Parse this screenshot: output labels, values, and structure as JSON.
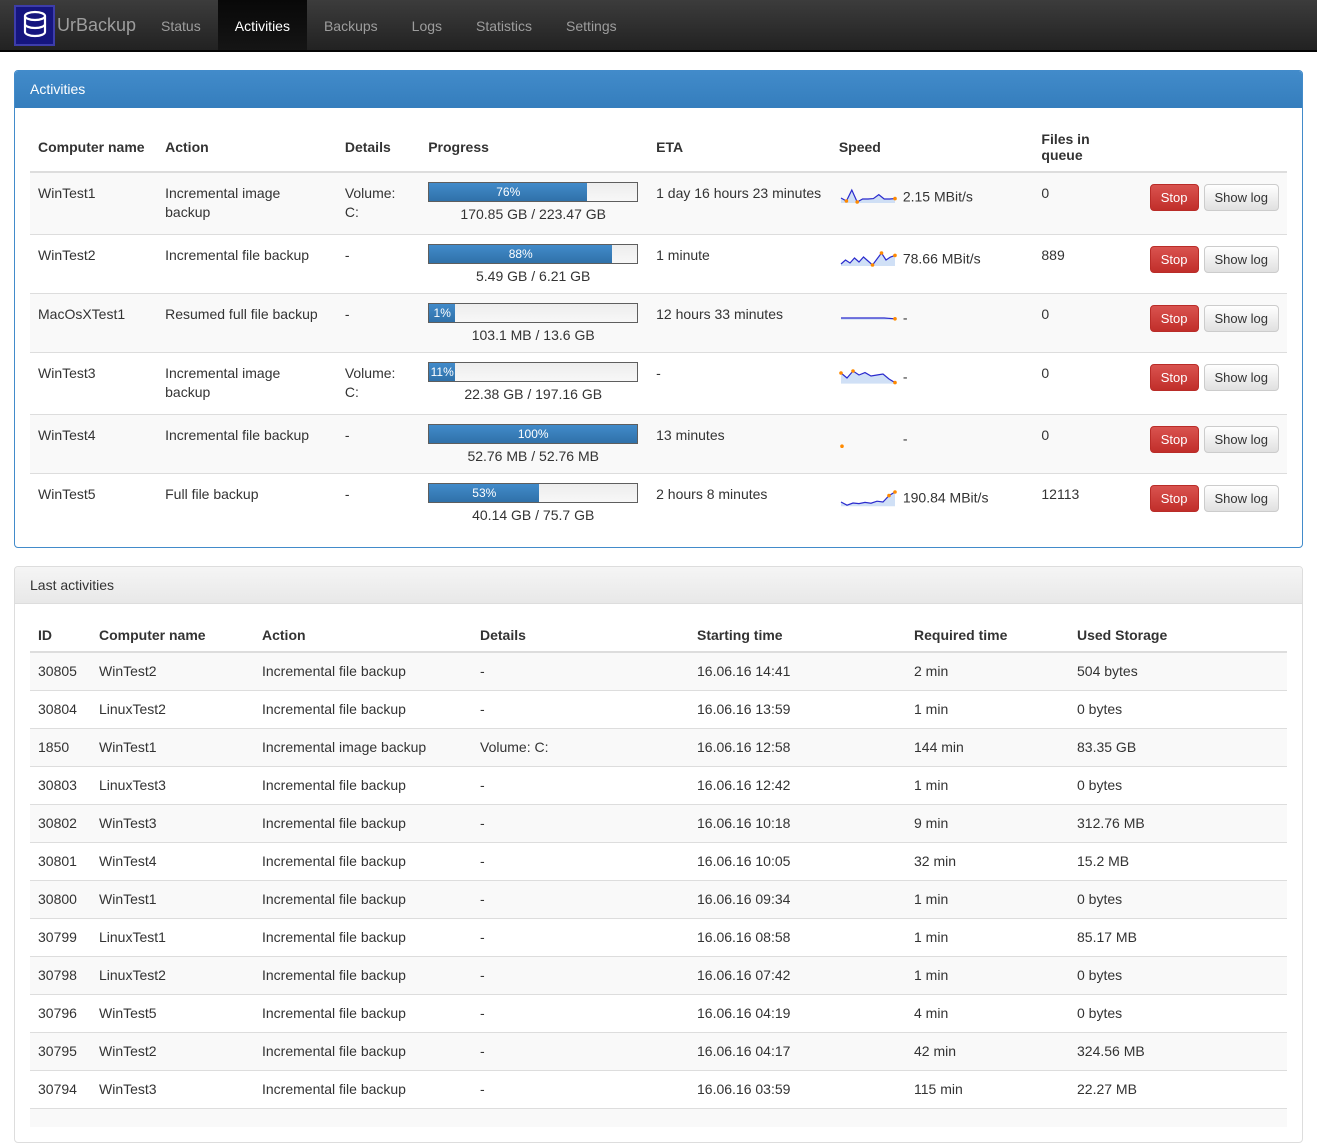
{
  "colors": {
    "accent_blue": "#428bca",
    "danger_red": "#d9534f",
    "navbar_dark": "#222222",
    "spark_line": "#2a2acd",
    "spark_fill": "#c8daf4",
    "spark_dot": "#ff8a00"
  },
  "navbar": {
    "brand": "UrBackup",
    "items": [
      {
        "label": "Status",
        "active": false
      },
      {
        "label": "Activities",
        "active": true
      },
      {
        "label": "Backups",
        "active": false
      },
      {
        "label": "Logs",
        "active": false
      },
      {
        "label": "Statistics",
        "active": false
      },
      {
        "label": "Settings",
        "active": false
      }
    ]
  },
  "activities": {
    "title": "Activities",
    "columns": [
      "Computer name",
      "Action",
      "Details",
      "Progress",
      "ETA",
      "Speed",
      "Files in queue",
      ""
    ],
    "stop_label": "Stop",
    "show_log_label": "Show log",
    "rows": [
      {
        "computer": "WinTest1",
        "action": "Incremental image backup",
        "details": "Volume: C:",
        "progress_pct": 76,
        "progress_label": "76%",
        "size": "170.85 GB / 223.47 GB",
        "eta": "1 day 16 hours 23 minutes",
        "speed": "2.15 MBit/s",
        "queue": "0",
        "spark": {
          "values": [
            45,
            30,
            85,
            25,
            40,
            40,
            42,
            62,
            40,
            40,
            42
          ],
          "dots": [
            1,
            3,
            10
          ]
        }
      },
      {
        "computer": "WinTest2",
        "action": "Incremental file backup",
        "details": "-",
        "progress_pct": 88,
        "progress_label": "88%",
        "size": "5.49 GB / 6.21 GB",
        "eta": "1 minute",
        "speed": "78.66 MBit/s",
        "queue": "889",
        "spark": {
          "values": [
            25,
            45,
            30,
            55,
            35,
            60,
            40,
            20,
            50,
            80,
            45,
            60,
            68
          ],
          "dots": [
            7,
            9,
            12
          ]
        }
      },
      {
        "computer": "MacOsXTest1",
        "action": "Resumed full file backup",
        "details": "-",
        "progress_pct": 1,
        "progress_label": "1%",
        "size": "103.1 MB / 13.6 GB",
        "eta": "12 hours 33 minutes",
        "speed": "-",
        "queue": "0",
        "spark": {
          "values": [
            50,
            50,
            50,
            50,
            50,
            46
          ],
          "dots": [
            5
          ]
        }
      },
      {
        "computer": "WinTest3",
        "action": "Incremental image backup",
        "details": "Volume: C:",
        "progress_pct": 11,
        "progress_label": "11%",
        "size": "22.38 GB / 197.16 GB",
        "eta": "-",
        "speed": "-",
        "queue": "0",
        "spark": {
          "values": [
            70,
            45,
            80,
            60,
            72,
            55,
            60,
            65,
            40,
            22
          ],
          "dots": [
            0,
            2,
            9
          ]
        }
      },
      {
        "computer": "WinTest4",
        "action": "Incremental file backup",
        "details": "-",
        "progress_pct": 100,
        "progress_label": "100%",
        "size": "52.76 MB / 52.76 MB",
        "eta": "13 minutes",
        "speed": "-",
        "queue": "0",
        "spark": {
          "values": [
            14
          ],
          "dots": [
            0
          ]
        }
      },
      {
        "computer": "WinTest5",
        "action": "Full file backup",
        "details": "-",
        "progress_pct": 53,
        "progress_label": "53%",
        "size": "40.14 GB / 75.7 GB",
        "eta": "2 hours 8 minutes",
        "speed": "190.84 MBit/s",
        "queue": "12113",
        "spark": {
          "values": [
            30,
            14,
            25,
            22,
            28,
            24,
            34,
            30,
            62,
            80
          ],
          "dots": [
            8,
            9
          ]
        }
      }
    ]
  },
  "last_activities": {
    "title": "Last activities",
    "columns": [
      "ID",
      "Computer name",
      "Action",
      "Details",
      "Starting time",
      "Required time",
      "Used Storage"
    ],
    "rows": [
      {
        "id": "30805",
        "computer": "WinTest2",
        "action": "Incremental file backup",
        "details": "-",
        "start": "16.06.16 14:41",
        "required": "2 min",
        "storage": "504 bytes"
      },
      {
        "id": "30804",
        "computer": "LinuxTest2",
        "action": "Incremental file backup",
        "details": "-",
        "start": "16.06.16 13:59",
        "required": "1 min",
        "storage": "0 bytes"
      },
      {
        "id": "1850",
        "computer": "WinTest1",
        "action": "Incremental image backup",
        "details": "Volume: C:",
        "start": "16.06.16 12:58",
        "required": "144 min",
        "storage": "83.35 GB"
      },
      {
        "id": "30803",
        "computer": "LinuxTest3",
        "action": "Incremental file backup",
        "details": "-",
        "start": "16.06.16 12:42",
        "required": "1 min",
        "storage": "0 bytes"
      },
      {
        "id": "30802",
        "computer": "WinTest3",
        "action": "Incremental file backup",
        "details": "-",
        "start": "16.06.16 10:18",
        "required": "9 min",
        "storage": "312.76 MB"
      },
      {
        "id": "30801",
        "computer": "WinTest4",
        "action": "Incremental file backup",
        "details": "-",
        "start": "16.06.16 10:05",
        "required": "32 min",
        "storage": "15.2 MB"
      },
      {
        "id": "30800",
        "computer": "WinTest1",
        "action": "Incremental file backup",
        "details": "-",
        "start": "16.06.16 09:34",
        "required": "1 min",
        "storage": "0 bytes"
      },
      {
        "id": "30799",
        "computer": "LinuxTest1",
        "action": "Incremental file backup",
        "details": "-",
        "start": "16.06.16 08:58",
        "required": "1 min",
        "storage": "85.17 MB"
      },
      {
        "id": "30798",
        "computer": "LinuxTest2",
        "action": "Incremental file backup",
        "details": "-",
        "start": "16.06.16 07:42",
        "required": "1 min",
        "storage": "0 bytes"
      },
      {
        "id": "30796",
        "computer": "WinTest5",
        "action": "Incremental file backup",
        "details": "-",
        "start": "16.06.16 04:19",
        "required": "4 min",
        "storage": "0 bytes"
      },
      {
        "id": "30795",
        "computer": "WinTest2",
        "action": "Incremental file backup",
        "details": "-",
        "start": "16.06.16 04:17",
        "required": "42 min",
        "storage": "324.56 MB"
      },
      {
        "id": "30794",
        "computer": "WinTest3",
        "action": "Incremental file backup",
        "details": "-",
        "start": "16.06.16 03:59",
        "required": "115 min",
        "storage": "22.27 MB"
      },
      {
        "id": "",
        "computer": "",
        "action": "",
        "details": "",
        "start": "",
        "required": "",
        "storage": ""
      }
    ]
  }
}
